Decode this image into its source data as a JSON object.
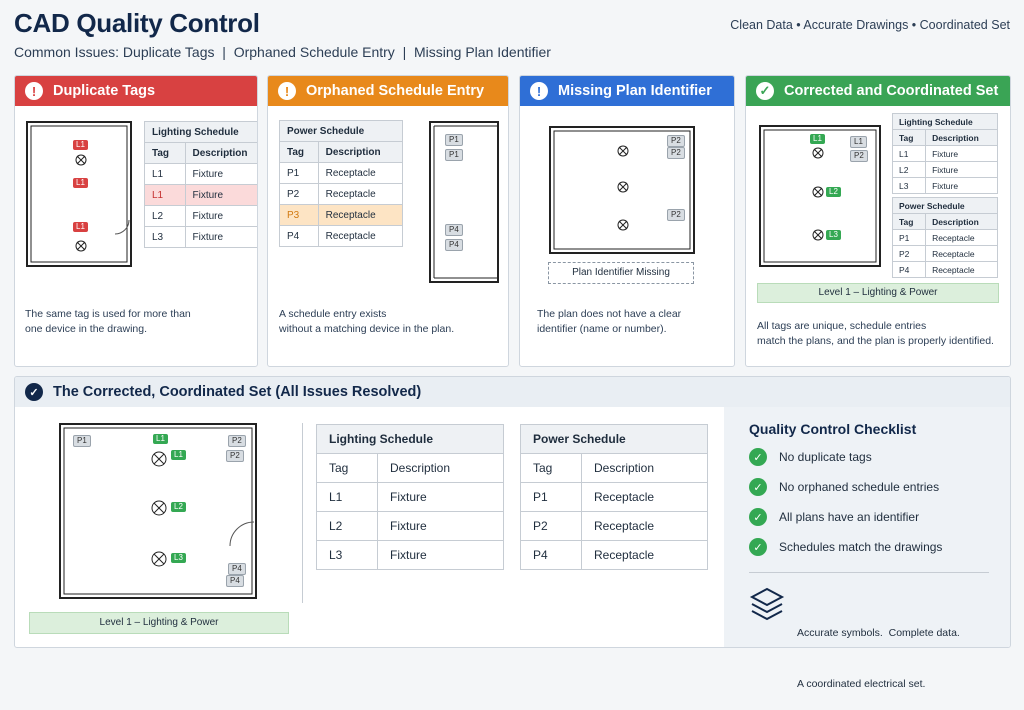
{
  "header": {
    "title": "CAD Quality Control",
    "subtitle": "Common Issues: Duplicate Tags  |  Orphaned Schedule Entry  |  Missing Plan Identifier",
    "tagline": "Clean Data  •  Accurate Drawings  •  Coordinated Set"
  },
  "colors": {
    "red": "#d84141",
    "orange": "#e8891b",
    "blue": "#2f6fd6",
    "green": "#3aa455",
    "navy": "#12284a"
  },
  "panels": [
    {
      "title": "Duplicate Tags",
      "icon": "exclamation-icon",
      "caption1": "The same tag is used for more than",
      "caption2": "one device in the drawing.",
      "schedule": {
        "title": "Lighting Schedule",
        "headers": [
          "Tag",
          "Description"
        ],
        "rows": [
          [
            "L1",
            "Fixture"
          ],
          [
            "L1",
            "Fixture"
          ],
          [
            "L2",
            "Fixture"
          ],
          [
            "L3",
            "Fixture"
          ]
        ]
      },
      "plan_tags": [
        "L1",
        "L1",
        "L1"
      ]
    },
    {
      "title": "Orphaned Schedule Entry",
      "icon": "exclamation-icon",
      "caption1": "A schedule entry exists",
      "caption2": "without a matching device in the plan.",
      "schedule": {
        "title": "Power Schedule",
        "headers": [
          "Tag",
          "Description"
        ],
        "rows": [
          [
            "P1",
            "Receptacle"
          ],
          [
            "P2",
            "Receptacle"
          ],
          [
            "P3",
            "Receptacle"
          ],
          [
            "P4",
            "Receptacle"
          ]
        ]
      },
      "plan_tags": [
        "P1",
        "P1",
        "P4",
        "P4"
      ]
    },
    {
      "title": "Missing Plan Identifier",
      "icon": "exclamation-icon",
      "caption1": "The plan does not have a clear",
      "caption2": "identifier (name or number).",
      "missing_label": "Plan Identifier Missing",
      "plan_tags": [
        "P2",
        "P2",
        "P2"
      ]
    },
    {
      "title": "Corrected and Coordinated Set",
      "icon": "check-icon",
      "caption1": "All tags are unique, schedule entries",
      "caption2": "match the plans, and the plan is properly identified.",
      "level_label": "Level 1 – Lighting & Power",
      "lighting": {
        "title": "Lighting Schedule",
        "headers": [
          "Tag",
          "Description"
        ],
        "rows": [
          [
            "L1",
            "Fixture"
          ],
          [
            "L2",
            "Fixture"
          ],
          [
            "L3",
            "Fixture"
          ]
        ]
      },
      "power": {
        "title": "Power Schedule",
        "headers": [
          "Tag",
          "Description"
        ],
        "rows": [
          [
            "P1",
            "Receptacle"
          ],
          [
            "P2",
            "Receptacle"
          ],
          [
            "P4",
            "Receptacle"
          ]
        ]
      },
      "plan_tags": [
        "L1",
        "L1",
        "P2",
        "L2",
        "L3"
      ]
    }
  ],
  "bottom": {
    "title": "The Corrected, Coordinated Set (All Issues Resolved)",
    "level_label": "Level 1 – Lighting & Power",
    "plan_tags": [
      "P1",
      "L1",
      "L1",
      "P2",
      "P2",
      "L2",
      "L3",
      "P4",
      "P4"
    ],
    "lighting": {
      "title": "Lighting Schedule",
      "headers": [
        "Tag",
        "Description"
      ],
      "rows": [
        [
          "L1",
          "Fixture"
        ],
        [
          "L2",
          "Fixture"
        ],
        [
          "L3",
          "Fixture"
        ]
      ]
    },
    "power": {
      "title": "Power Schedule",
      "headers": [
        "Tag",
        "Description"
      ],
      "rows": [
        [
          "P1",
          "Receptacle"
        ],
        [
          "P2",
          "Receptacle"
        ],
        [
          "P4",
          "Receptacle"
        ]
      ]
    },
    "checklist": {
      "title": "Quality Control Checklist",
      "items": [
        "No duplicate tags",
        "No orphaned schedule entries",
        "All plans have an identifier",
        "Schedules match the drawings"
      ]
    },
    "footer1": "Accurate symbols.  Complete data.",
    "footer2": "A coordinated electrical set."
  }
}
